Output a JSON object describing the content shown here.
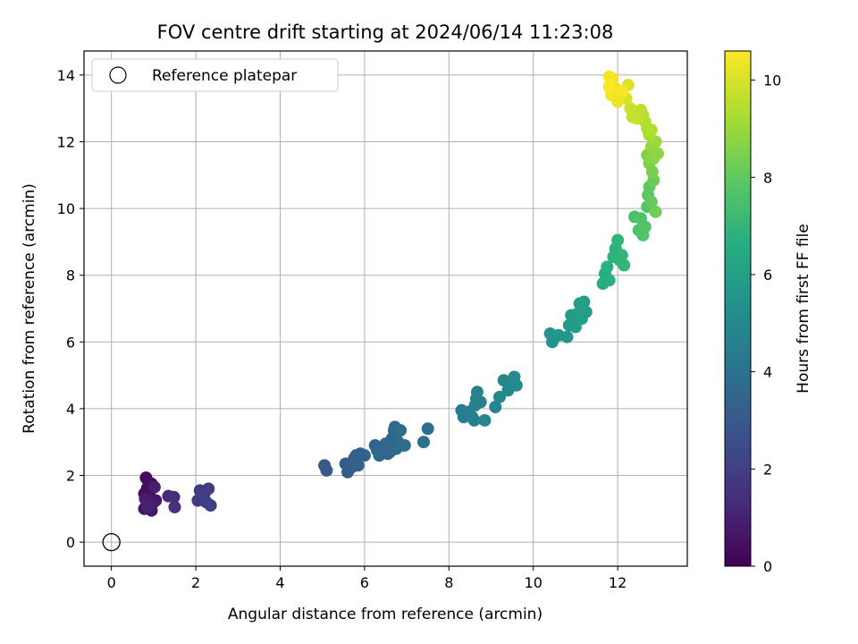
{
  "chart_data": {
    "type": "scatter",
    "title": "FOV centre drift starting at 2024/06/14 11:23:08",
    "xlabel": "Angular distance from reference (arcmin)",
    "ylabel": "Rotation from reference (arcmin)",
    "xlim": [
      -0.65,
      13.65
    ],
    "ylim": [
      -0.72,
      14.72
    ],
    "x_ticks": [
      0,
      2,
      4,
      6,
      8,
      10,
      12
    ],
    "y_ticks": [
      0,
      2,
      4,
      6,
      8,
      10,
      12,
      14
    ],
    "grid": true,
    "legend": {
      "placement": "top-left",
      "entries": [
        "Reference platepar"
      ]
    },
    "reference_point": {
      "name": "Reference platepar",
      "x": 0,
      "y": 0,
      "marker": "open-circle"
    },
    "colorbar": {
      "label": "Hours from first FF file",
      "range": [
        0,
        10.6
      ],
      "ticks": [
        0,
        2,
        4,
        6,
        8,
        10
      ],
      "colormap": "viridis"
    },
    "series": [
      {
        "color_by": "hours",
        "points": [
          [
            0.82,
            1.93,
            0.2
          ],
          [
            0.95,
            1.75,
            0.3
          ],
          [
            0.85,
            1.62,
            0.3
          ],
          [
            0.92,
            1.55,
            0.4
          ],
          [
            0.78,
            1.45,
            0.4
          ],
          [
            0.9,
            1.35,
            0.5
          ],
          [
            1.0,
            1.2,
            0.5
          ],
          [
            0.85,
            1.1,
            0.6
          ],
          [
            0.78,
            1.0,
            0.6
          ],
          [
            0.95,
            0.95,
            0.7
          ],
          [
            1.05,
            1.25,
            0.7
          ],
          [
            0.88,
            1.8,
            0.3
          ],
          [
            0.8,
            1.3,
            0.8
          ],
          [
            0.92,
            1.1,
            0.9
          ],
          [
            1.02,
            1.65,
            0.9
          ],
          [
            0.85,
            1.05,
            1.0
          ],
          [
            1.35,
            1.38,
            1.3
          ],
          [
            1.48,
            1.35,
            1.4
          ],
          [
            1.5,
            1.05,
            1.5
          ],
          [
            2.1,
            1.55,
            1.7
          ],
          [
            2.15,
            1.3,
            1.7
          ],
          [
            2.05,
            1.25,
            1.8
          ],
          [
            2.2,
            1.45,
            1.8
          ],
          [
            2.3,
            1.6,
            1.9
          ],
          [
            2.35,
            1.1,
            2.0
          ],
          [
            2.25,
            1.2,
            2.0
          ],
          [
            2.12,
            1.5,
            1.9
          ],
          [
            5.05,
            2.3,
            3.0
          ],
          [
            5.1,
            2.15,
            3.0
          ],
          [
            5.55,
            2.35,
            3.1
          ],
          [
            5.6,
            2.1,
            3.1
          ],
          [
            5.7,
            2.25,
            3.2
          ],
          [
            5.75,
            2.5,
            3.2
          ],
          [
            5.8,
            2.6,
            3.3
          ],
          [
            5.85,
            2.3,
            3.3
          ],
          [
            5.9,
            2.65,
            3.3
          ],
          [
            6.25,
            2.9,
            3.4
          ],
          [
            6.3,
            2.75,
            3.4
          ],
          [
            6.35,
            2.6,
            3.5
          ],
          [
            6.45,
            2.8,
            3.5
          ],
          [
            6.5,
            2.95,
            3.5
          ],
          [
            6.6,
            2.7,
            3.6
          ],
          [
            6.65,
            3.1,
            3.6
          ],
          [
            6.7,
            3.35,
            3.6
          ],
          [
            6.72,
            3.45,
            3.7
          ],
          [
            6.75,
            2.8,
            3.7
          ],
          [
            6.8,
            3.0,
            3.7
          ],
          [
            6.85,
            3.35,
            3.8
          ],
          [
            6.9,
            2.9,
            3.8
          ],
          [
            6.95,
            2.9,
            3.8
          ],
          [
            7.4,
            3.0,
            3.9
          ],
          [
            7.5,
            3.4,
            3.9
          ],
          [
            6.55,
            2.65,
            3.5
          ],
          [
            6.0,
            2.6,
            3.4
          ],
          [
            8.3,
            3.95,
            4.4
          ],
          [
            8.35,
            3.75,
            4.4
          ],
          [
            8.45,
            3.9,
            4.5
          ],
          [
            8.55,
            3.75,
            4.5
          ],
          [
            8.6,
            3.65,
            4.6
          ],
          [
            8.62,
            4.1,
            4.6
          ],
          [
            8.65,
            4.3,
            4.6
          ],
          [
            8.67,
            4.5,
            4.7
          ],
          [
            8.75,
            4.2,
            4.7
          ],
          [
            8.85,
            3.65,
            4.8
          ],
          [
            9.1,
            4.05,
            4.8
          ],
          [
            9.2,
            4.35,
            4.9
          ],
          [
            9.3,
            4.85,
            4.9
          ],
          [
            9.4,
            4.55,
            5.0
          ],
          [
            9.5,
            4.7,
            5.0
          ],
          [
            9.55,
            4.95,
            5.1
          ],
          [
            9.6,
            4.7,
            5.1
          ],
          [
            10.4,
            6.25,
            5.5
          ],
          [
            10.45,
            6.0,
            5.5
          ],
          [
            10.6,
            6.2,
            5.6
          ],
          [
            10.8,
            6.15,
            5.6
          ],
          [
            10.85,
            6.5,
            5.7
          ],
          [
            10.9,
            6.8,
            5.7
          ],
          [
            10.95,
            6.6,
            5.8
          ],
          [
            11.0,
            6.45,
            5.8
          ],
          [
            11.05,
            6.85,
            5.9
          ],
          [
            11.1,
            7.15,
            5.9
          ],
          [
            11.15,
            6.7,
            6.0
          ],
          [
            11.25,
            6.9,
            6.0
          ],
          [
            11.2,
            7.2,
            6.0
          ],
          [
            11.65,
            7.75,
            6.6
          ],
          [
            11.7,
            8.05,
            6.6
          ],
          [
            11.75,
            8.25,
            6.7
          ],
          [
            11.8,
            7.85,
            6.7
          ],
          [
            11.9,
            8.55,
            6.8
          ],
          [
            11.95,
            8.8,
            6.8
          ],
          [
            12.0,
            9.05,
            6.9
          ],
          [
            12.05,
            8.45,
            6.9
          ],
          [
            12.1,
            8.6,
            7.0
          ],
          [
            12.15,
            8.3,
            7.0
          ],
          [
            12.4,
            9.75,
            7.5
          ],
          [
            12.5,
            9.35,
            7.6
          ],
          [
            12.55,
            9.7,
            7.6
          ],
          [
            12.6,
            9.2,
            7.7
          ],
          [
            12.65,
            9.45,
            7.7
          ],
          [
            12.7,
            10.05,
            7.8
          ],
          [
            12.72,
            10.4,
            7.9
          ],
          [
            12.75,
            10.65,
            8.0
          ],
          [
            12.8,
            10.2,
            8.1
          ],
          [
            12.85,
            10.85,
            8.2
          ],
          [
            12.9,
            9.9,
            8.3
          ],
          [
            12.82,
            11.1,
            8.4
          ],
          [
            12.75,
            11.35,
            8.5
          ],
          [
            12.7,
            11.6,
            8.6
          ],
          [
            12.85,
            11.5,
            8.7
          ],
          [
            12.95,
            11.65,
            8.8
          ],
          [
            12.8,
            11.85,
            8.9
          ],
          [
            12.9,
            12.0,
            9.0
          ],
          [
            12.75,
            12.2,
            9.2
          ],
          [
            12.7,
            12.4,
            9.3
          ],
          [
            12.65,
            12.6,
            9.4
          ],
          [
            12.8,
            12.35,
            9.4
          ],
          [
            12.6,
            12.8,
            9.5
          ],
          [
            12.55,
            12.95,
            9.6
          ],
          [
            12.45,
            12.7,
            9.7
          ],
          [
            12.35,
            12.75,
            9.7
          ],
          [
            12.3,
            13.0,
            9.8
          ],
          [
            12.2,
            13.3,
            10.0
          ],
          [
            12.25,
            13.7,
            10.1
          ],
          [
            12.0,
            13.45,
            10.2
          ],
          [
            11.95,
            13.6,
            10.3
          ],
          [
            11.88,
            13.9,
            10.4
          ],
          [
            11.85,
            13.4,
            10.4
          ],
          [
            11.8,
            13.95,
            10.5
          ],
          [
            12.1,
            13.5,
            10.5
          ],
          [
            11.8,
            13.65,
            10.55
          ],
          [
            12.0,
            13.2,
            10.3
          ]
        ]
      }
    ]
  }
}
